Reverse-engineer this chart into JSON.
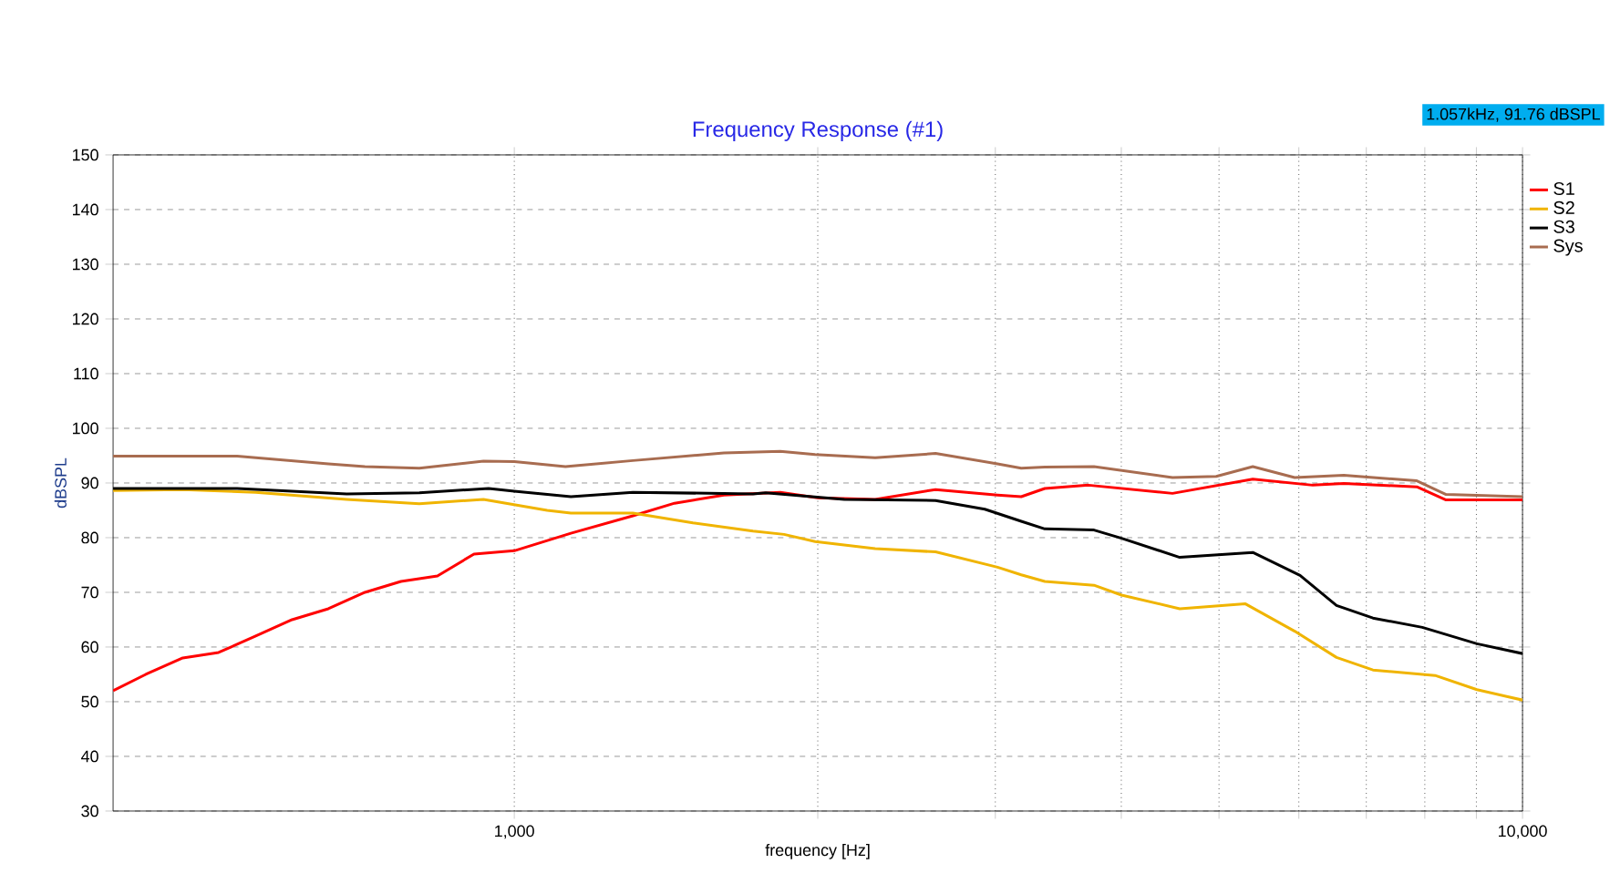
{
  "chart_data": {
    "type": "line",
    "title": "Frequency Response (#1)",
    "xlabel": "frequency [Hz]",
    "ylabel": "dBSPL",
    "log": "x",
    "grid": true,
    "legend": "right",
    "marker": "none",
    "line_style": "solid",
    "annotations": [
      "1.057kHz, 91.76 dBSPL"
    ],
    "xlim": [
      400,
      10000
    ],
    "ylim": [
      30,
      150
    ],
    "xticks": [
      {
        "value": 1000,
        "label": "1,000"
      },
      {
        "value": 2000,
        "label": null
      },
      {
        "value": 3000,
        "label": null
      },
      {
        "value": 4000,
        "label": null
      },
      {
        "value": 5000,
        "label": null
      },
      {
        "value": 6000,
        "label": null
      },
      {
        "value": 7000,
        "label": null
      },
      {
        "value": 8000,
        "label": null
      },
      {
        "value": 9000,
        "label": null
      },
      {
        "value": 10000,
        "label": "10,000"
      }
    ],
    "yticks": [
      30,
      40,
      50,
      60,
      70,
      80,
      90,
      100,
      110,
      120,
      130,
      140,
      150
    ],
    "series": [
      {
        "name": "S1",
        "color": "#ff0000",
        "x": [
          400,
          431,
          469,
          509,
          554,
          602,
          654,
          711,
          772,
          839,
          912,
          1000,
          1138,
          1311,
          1442,
          1614,
          1836,
          2000,
          2280,
          2617,
          3015,
          3183,
          3359,
          3712,
          4496,
          5401,
          6194,
          6649,
          7856,
          8398,
          10000
        ],
        "values": [
          52,
          55,
          58,
          59,
          62,
          65,
          67,
          70,
          72,
          73,
          77,
          77.6,
          80.8,
          84,
          86.3,
          87.8,
          88.3,
          87.3,
          87,
          88.8,
          87.8,
          87.5,
          89,
          89.6,
          88.1,
          90.7,
          89.6,
          89.9,
          89.3,
          86.9,
          86.9
        ]
      },
      {
        "name": "S2",
        "color": "#f0b400",
        "x": [
          400,
          469,
          554,
          682,
          805,
          932,
          1078,
          1138,
          1311,
          1504,
          1725,
          1852,
          1988,
          2280,
          2617,
          3015,
          3183,
          3359,
          3758,
          4002,
          4571,
          5311,
          5943,
          6539,
          7107,
          8190,
          9012,
          10000
        ],
        "values": [
          88.6,
          88.8,
          88.3,
          87,
          86.2,
          87,
          85,
          84.5,
          84.5,
          82.7,
          81.2,
          80.6,
          79.3,
          78,
          77.4,
          74.6,
          73.2,
          72,
          71.3,
          69.5,
          67,
          67.9,
          62.9,
          58.1,
          55.8,
          54.8,
          52.2,
          50.3
        ]
      },
      {
        "name": "S3",
        "color": "#000000",
        "x": [
          400,
          531,
          682,
          805,
          943,
          1000,
          1138,
          1311,
          1725,
          1776,
          2125,
          2617,
          2929,
          3183,
          3359,
          3758,
          4002,
          4571,
          5401,
          6017,
          6539,
          7107,
          7955,
          9012,
          10000
        ],
        "values": [
          89,
          89,
          88,
          88.2,
          89,
          88.5,
          87.5,
          88.3,
          88,
          88.2,
          87,
          86.8,
          85.2,
          83,
          81.6,
          81.4,
          79.9,
          76.4,
          77.3,
          73.1,
          67.6,
          65.3,
          63.6,
          60.6,
          58.8
        ]
      },
      {
        "name": "Sys",
        "color": "#a86c50",
        "x": [
          400,
          531,
          654,
          711,
          805,
          932,
          1000,
          1124,
          1311,
          1614,
          1836,
          1988,
          2280,
          2617,
          3015,
          3183,
          3359,
          3758,
          4496,
          4968,
          5401,
          5943,
          6649,
          7856,
          8398,
          10000
        ],
        "values": [
          94.9,
          94.9,
          93.5,
          93,
          92.7,
          94,
          93.9,
          93,
          94.1,
          95.5,
          95.8,
          95.2,
          94.6,
          95.4,
          93.5,
          92.7,
          92.9,
          93,
          91,
          91.2,
          93,
          91,
          91.4,
          90.4,
          87.9,
          87.5
        ]
      }
    ]
  }
}
